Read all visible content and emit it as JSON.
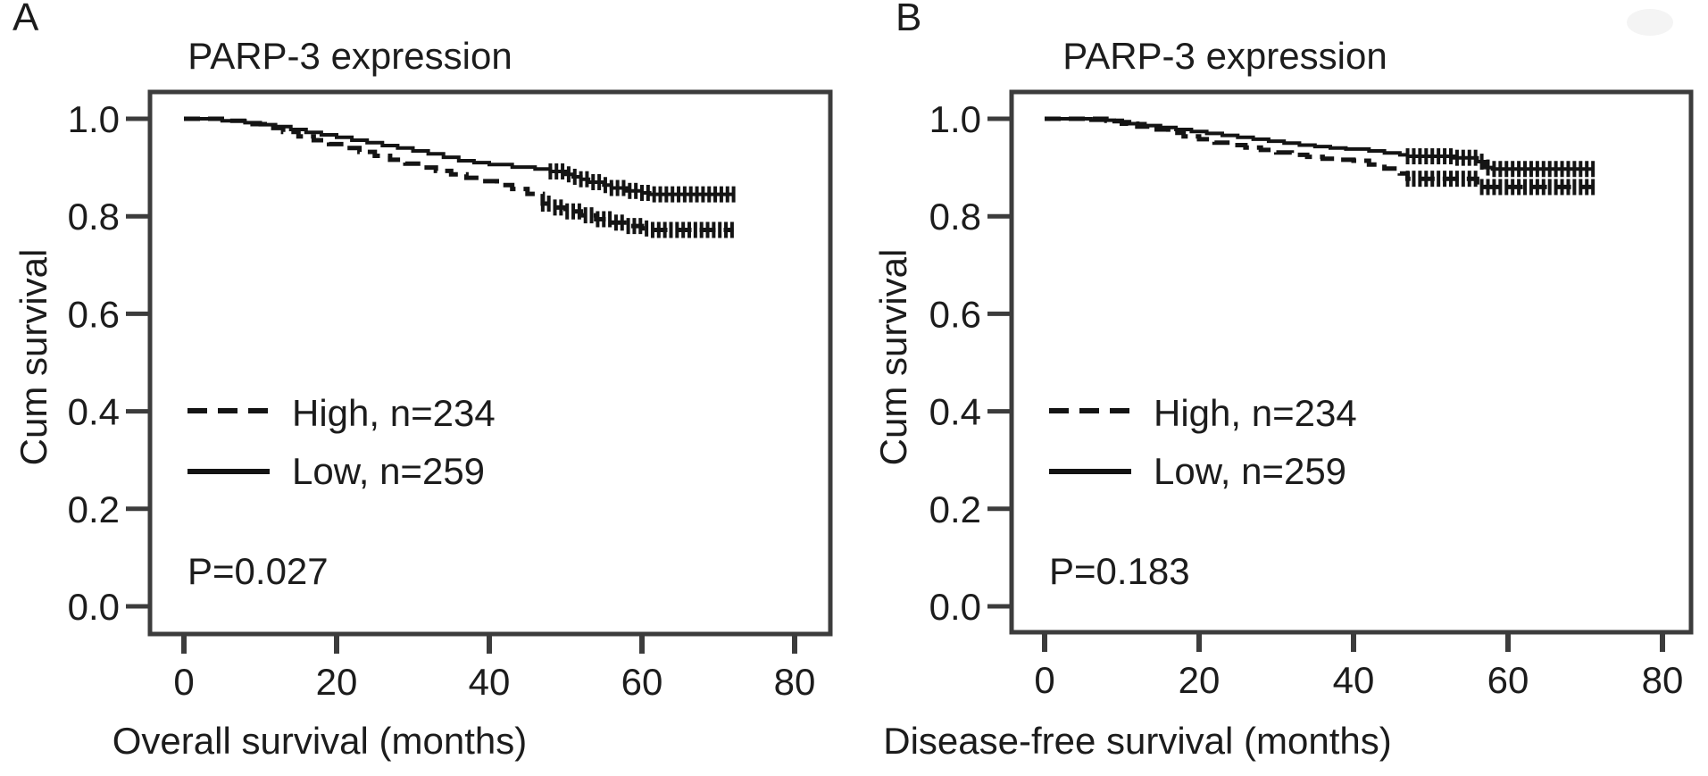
{
  "panels": [
    {
      "letter": "A"
    },
    {
      "letter": "B"
    }
  ],
  "colors": {
    "line": "#141414",
    "axis": "#3c3c3c",
    "text": "#1c1c1c"
  },
  "chart_data": [
    {
      "type": "line",
      "subtype": "kaplan_meier_step",
      "title": "PARP-3 expression",
      "xlabel": "Overall survival (months)",
      "ylabel": "Cum survival",
      "p_value": "P=0.027",
      "xticks": [
        0,
        20,
        40,
        60,
        80
      ],
      "xtick_labels": [
        "0",
        "20",
        "40",
        "60",
        "80"
      ],
      "yticks": [
        1.0,
        0.8,
        0.6,
        0.4,
        0.2,
        0.0
      ],
      "ytick_labels": [
        "1.0",
        "0.8",
        "0.6",
        "0.4",
        "0.2",
        "0.0"
      ],
      "xlim": [
        -4.5,
        84.5
      ],
      "ylim": [
        -0.06,
        1.06
      ],
      "grid": false,
      "legend_position": "inside-left-middle",
      "series": [
        {
          "name": "High, n=234",
          "style": "dashed",
          "steps": [
            [
              0,
              1.0
            ],
            [
              6,
              0.996
            ],
            [
              9,
              0.989
            ],
            [
              11,
              0.981
            ],
            [
              13,
              0.973
            ],
            [
              15,
              0.964
            ],
            [
              17,
              0.956
            ],
            [
              19,
              0.948
            ],
            [
              21,
              0.94
            ],
            [
              23,
              0.932
            ],
            [
              25,
              0.924
            ],
            [
              27,
              0.916
            ],
            [
              29,
              0.908
            ],
            [
              31,
              0.9
            ],
            [
              33,
              0.893
            ],
            [
              35,
              0.886
            ],
            [
              37,
              0.879
            ],
            [
              39,
              0.872
            ],
            [
              41,
              0.864
            ],
            [
              43,
              0.856
            ],
            [
              45,
              0.846
            ],
            [
              47,
              0.826
            ],
            [
              48,
              0.818
            ],
            [
              50,
              0.81
            ],
            [
              52,
              0.802
            ],
            [
              54,
              0.794
            ],
            [
              56,
              0.787
            ],
            [
              58,
              0.78
            ],
            [
              60,
              0.775
            ],
            [
              61,
              0.772
            ],
            [
              72,
              0.772
            ]
          ],
          "censor_months": [
            47,
            47.8,
            48.6,
            49.4,
            50.2,
            51,
            51.8,
            52.6,
            53.4,
            54.2,
            55,
            55.8,
            56.6,
            57.4,
            58.2,
            59,
            59.8,
            60.6,
            61.4,
            62.2,
            63,
            63.8,
            64.6,
            65.4,
            66.2,
            67,
            67.8,
            68.6,
            69.4,
            70.2,
            71,
            71.8
          ]
        },
        {
          "name": "Low, n=259",
          "style": "solid",
          "steps": [
            [
              0,
              1.0
            ],
            [
              5,
              0.996
            ],
            [
              8,
              0.992
            ],
            [
              10,
              0.988
            ],
            [
              12,
              0.984
            ],
            [
              14,
              0.978
            ],
            [
              16,
              0.972
            ],
            [
              18,
              0.967
            ],
            [
              20,
              0.962
            ],
            [
              22,
              0.956
            ],
            [
              24,
              0.951
            ],
            [
              26,
              0.945
            ],
            [
              28,
              0.94
            ],
            [
              30,
              0.934
            ],
            [
              32,
              0.928
            ],
            [
              34,
              0.921
            ],
            [
              36,
              0.914
            ],
            [
              38,
              0.91
            ],
            [
              40,
              0.906
            ],
            [
              43,
              0.901
            ],
            [
              46,
              0.897
            ],
            [
              48,
              0.892
            ],
            [
              50,
              0.886
            ],
            [
              51,
              0.881
            ],
            [
              52,
              0.876
            ],
            [
              53,
              0.87
            ],
            [
              55,
              0.864
            ],
            [
              56,
              0.858
            ],
            [
              58,
              0.852
            ],
            [
              60,
              0.848
            ],
            [
              61,
              0.845
            ],
            [
              72,
              0.845
            ]
          ],
          "censor_months": [
            48,
            48.8,
            49.6,
            50.4,
            51.2,
            52,
            52.8,
            53.6,
            54.4,
            55.2,
            56,
            56.8,
            57.6,
            58.4,
            59.2,
            60,
            60.8,
            61.6,
            62.4,
            63.2,
            64,
            64.8,
            65.6,
            66.4,
            67.2,
            68,
            68.8,
            69.6,
            70.4,
            71.2,
            72
          ]
        }
      ]
    },
    {
      "type": "line",
      "subtype": "kaplan_meier_step",
      "title": "PARP-3 expression",
      "xlabel": "Disease-free survival (months)",
      "ylabel": "Cum survival",
      "p_value": "P=0.183",
      "xticks": [
        0,
        20,
        40,
        60,
        80
      ],
      "xtick_labels": [
        "0",
        "20",
        "40",
        "60",
        "80"
      ],
      "yticks": [
        1.0,
        0.8,
        0.6,
        0.4,
        0.2,
        0.0
      ],
      "ytick_labels": [
        "1.0",
        "0.8",
        "0.6",
        "0.4",
        "0.2",
        "0.0"
      ],
      "xlim": [
        -4.5,
        84.0
      ],
      "ylim": [
        -0.06,
        1.06
      ],
      "grid": false,
      "legend_position": "inside-left-middle",
      "series": [
        {
          "name": "High, n=234",
          "style": "dashed",
          "steps": [
            [
              0,
              1.0
            ],
            [
              8,
              0.996
            ],
            [
              10,
              0.99
            ],
            [
              12,
              0.984
            ],
            [
              14,
              0.978
            ],
            [
              16,
              0.971
            ],
            [
              18,
              0.964
            ],
            [
              20,
              0.958
            ],
            [
              22,
              0.951
            ],
            [
              24,
              0.946
            ],
            [
              26,
              0.941
            ],
            [
              28,
              0.936
            ],
            [
              30,
              0.931
            ],
            [
              32,
              0.926
            ],
            [
              34,
              0.922
            ],
            [
              36,
              0.918
            ],
            [
              38,
              0.916
            ],
            [
              40,
              0.914
            ],
            [
              42,
              0.906
            ],
            [
              44,
              0.898
            ],
            [
              46,
              0.888
            ],
            [
              47,
              0.877
            ],
            [
              55,
              0.877
            ],
            [
              56,
              0.86
            ],
            [
              71,
              0.86
            ]
          ],
          "censor_months": [
            47,
            47.8,
            48.6,
            49.4,
            50.2,
            51,
            51.8,
            52.6,
            53.4,
            54.2,
            55,
            55.8,
            56.6,
            57.4,
            58.2,
            59,
            59.8,
            60.6,
            61.4,
            62.2,
            63,
            63.8,
            64.6,
            65.4,
            66.2,
            67,
            67.8,
            68.6,
            69.4,
            70.2,
            71
          ]
        },
        {
          "name": "Low, n=259",
          "style": "solid",
          "steps": [
            [
              0,
              1.0
            ],
            [
              6,
              0.997
            ],
            [
              9,
              0.994
            ],
            [
              11,
              0.99
            ],
            [
              13,
              0.986
            ],
            [
              15,
              0.982
            ],
            [
              17,
              0.978
            ],
            [
              19,
              0.974
            ],
            [
              21,
              0.97
            ],
            [
              23,
              0.966
            ],
            [
              25,
              0.962
            ],
            [
              27,
              0.958
            ],
            [
              29,
              0.954
            ],
            [
              31,
              0.95
            ],
            [
              33,
              0.946
            ],
            [
              35,
              0.943
            ],
            [
              37,
              0.94
            ],
            [
              39,
              0.938
            ],
            [
              42,
              0.934
            ],
            [
              44,
              0.93
            ],
            [
              46,
              0.926
            ],
            [
              47,
              0.923
            ],
            [
              53,
              0.92
            ],
            [
              56,
              0.912
            ],
            [
              57,
              0.9
            ],
            [
              58,
              0.897
            ],
            [
              71,
              0.897
            ]
          ],
          "censor_months": [
            47,
            47.8,
            48.6,
            49.4,
            50.2,
            51,
            51.8,
            52.6,
            53.4,
            54.2,
            55,
            55.8,
            56.6,
            57.4,
            58.2,
            59,
            59.8,
            60.6,
            61.4,
            62.2,
            63,
            63.8,
            64.6,
            65.4,
            66.2,
            67,
            67.8,
            68.6,
            69.4,
            70.2,
            71
          ]
        }
      ]
    }
  ]
}
